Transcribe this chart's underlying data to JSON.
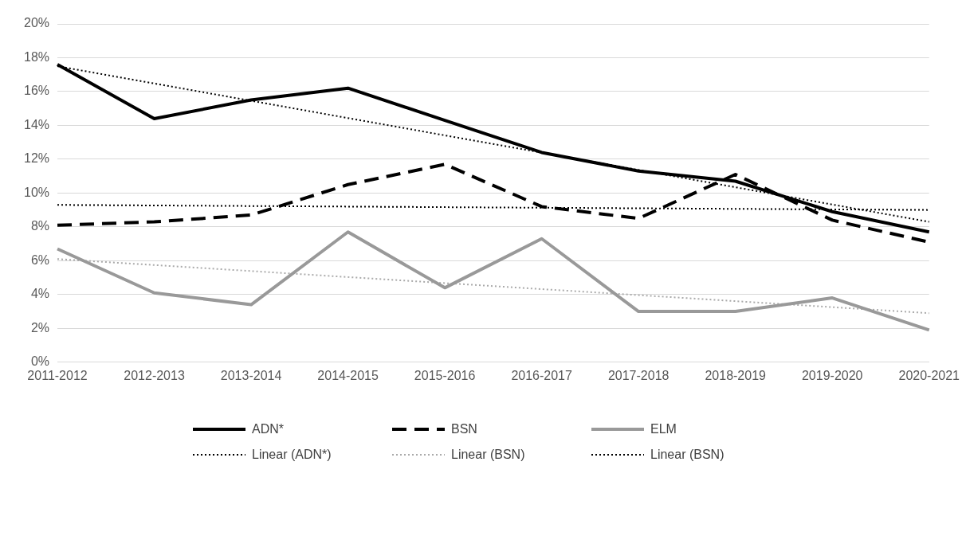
{
  "chart_data": {
    "type": "line",
    "categories": [
      "2011-2012",
      "2012-2013",
      "2013-2014",
      "2014-2015",
      "2015-2016",
      "2016-2017",
      "2017-2018",
      "2018-2019",
      "2019-2020",
      "2020-2021"
    ],
    "series": [
      {
        "name": "ADN*",
        "color": "#000000",
        "line_style": "solid",
        "values": [
          17.6,
          14.4,
          15.5,
          16.2,
          14.3,
          12.4,
          11.3,
          10.7,
          8.9,
          7.7
        ]
      },
      {
        "name": "BSN",
        "color": "#000000",
        "line_style": "dashed",
        "values": [
          8.1,
          8.3,
          8.7,
          10.5,
          11.7,
          9.2,
          8.5,
          11.1,
          8.4,
          7.1
        ]
      },
      {
        "name": "ELM",
        "color": "#999999",
        "line_style": "solid",
        "values": [
          6.7,
          4.1,
          3.4,
          7.7,
          4.4,
          7.3,
          3.0,
          3.0,
          3.8,
          1.9
        ]
      },
      {
        "name": "Linear (ADN*)",
        "color": "#000000",
        "line_style": "dotted",
        "values": [
          17.5,
          null,
          null,
          null,
          null,
          null,
          null,
          null,
          null,
          8.3
        ]
      },
      {
        "name": "Linear (BSN)",
        "color": "#aaaaaa",
        "line_style": "dotted",
        "values": [
          6.1,
          null,
          null,
          null,
          null,
          null,
          null,
          null,
          null,
          2.9
        ]
      },
      {
        "name": "Linear (BSN)",
        "color": "#000000",
        "line_style": "dotted",
        "values": [
          9.3,
          null,
          null,
          null,
          null,
          null,
          null,
          null,
          null,
          9.0
        ]
      }
    ],
    "ylim": [
      0,
      20
    ],
    "yticks": [
      {
        "value": 0,
        "label": "0%"
      },
      {
        "value": 2,
        "label": "2%"
      },
      {
        "value": 4,
        "label": "4%"
      },
      {
        "value": 6,
        "label": "6%"
      },
      {
        "value": 8,
        "label": "8%"
      },
      {
        "value": 10,
        "label": "10%"
      },
      {
        "value": 12,
        "label": "12%"
      },
      {
        "value": 14,
        "label": "14%"
      },
      {
        "value": 16,
        "label": "16%"
      },
      {
        "value": 18,
        "label": "18%"
      },
      {
        "value": 20,
        "label": "20%"
      }
    ],
    "grid": "y",
    "legend": "bottom",
    "marker": "none"
  }
}
